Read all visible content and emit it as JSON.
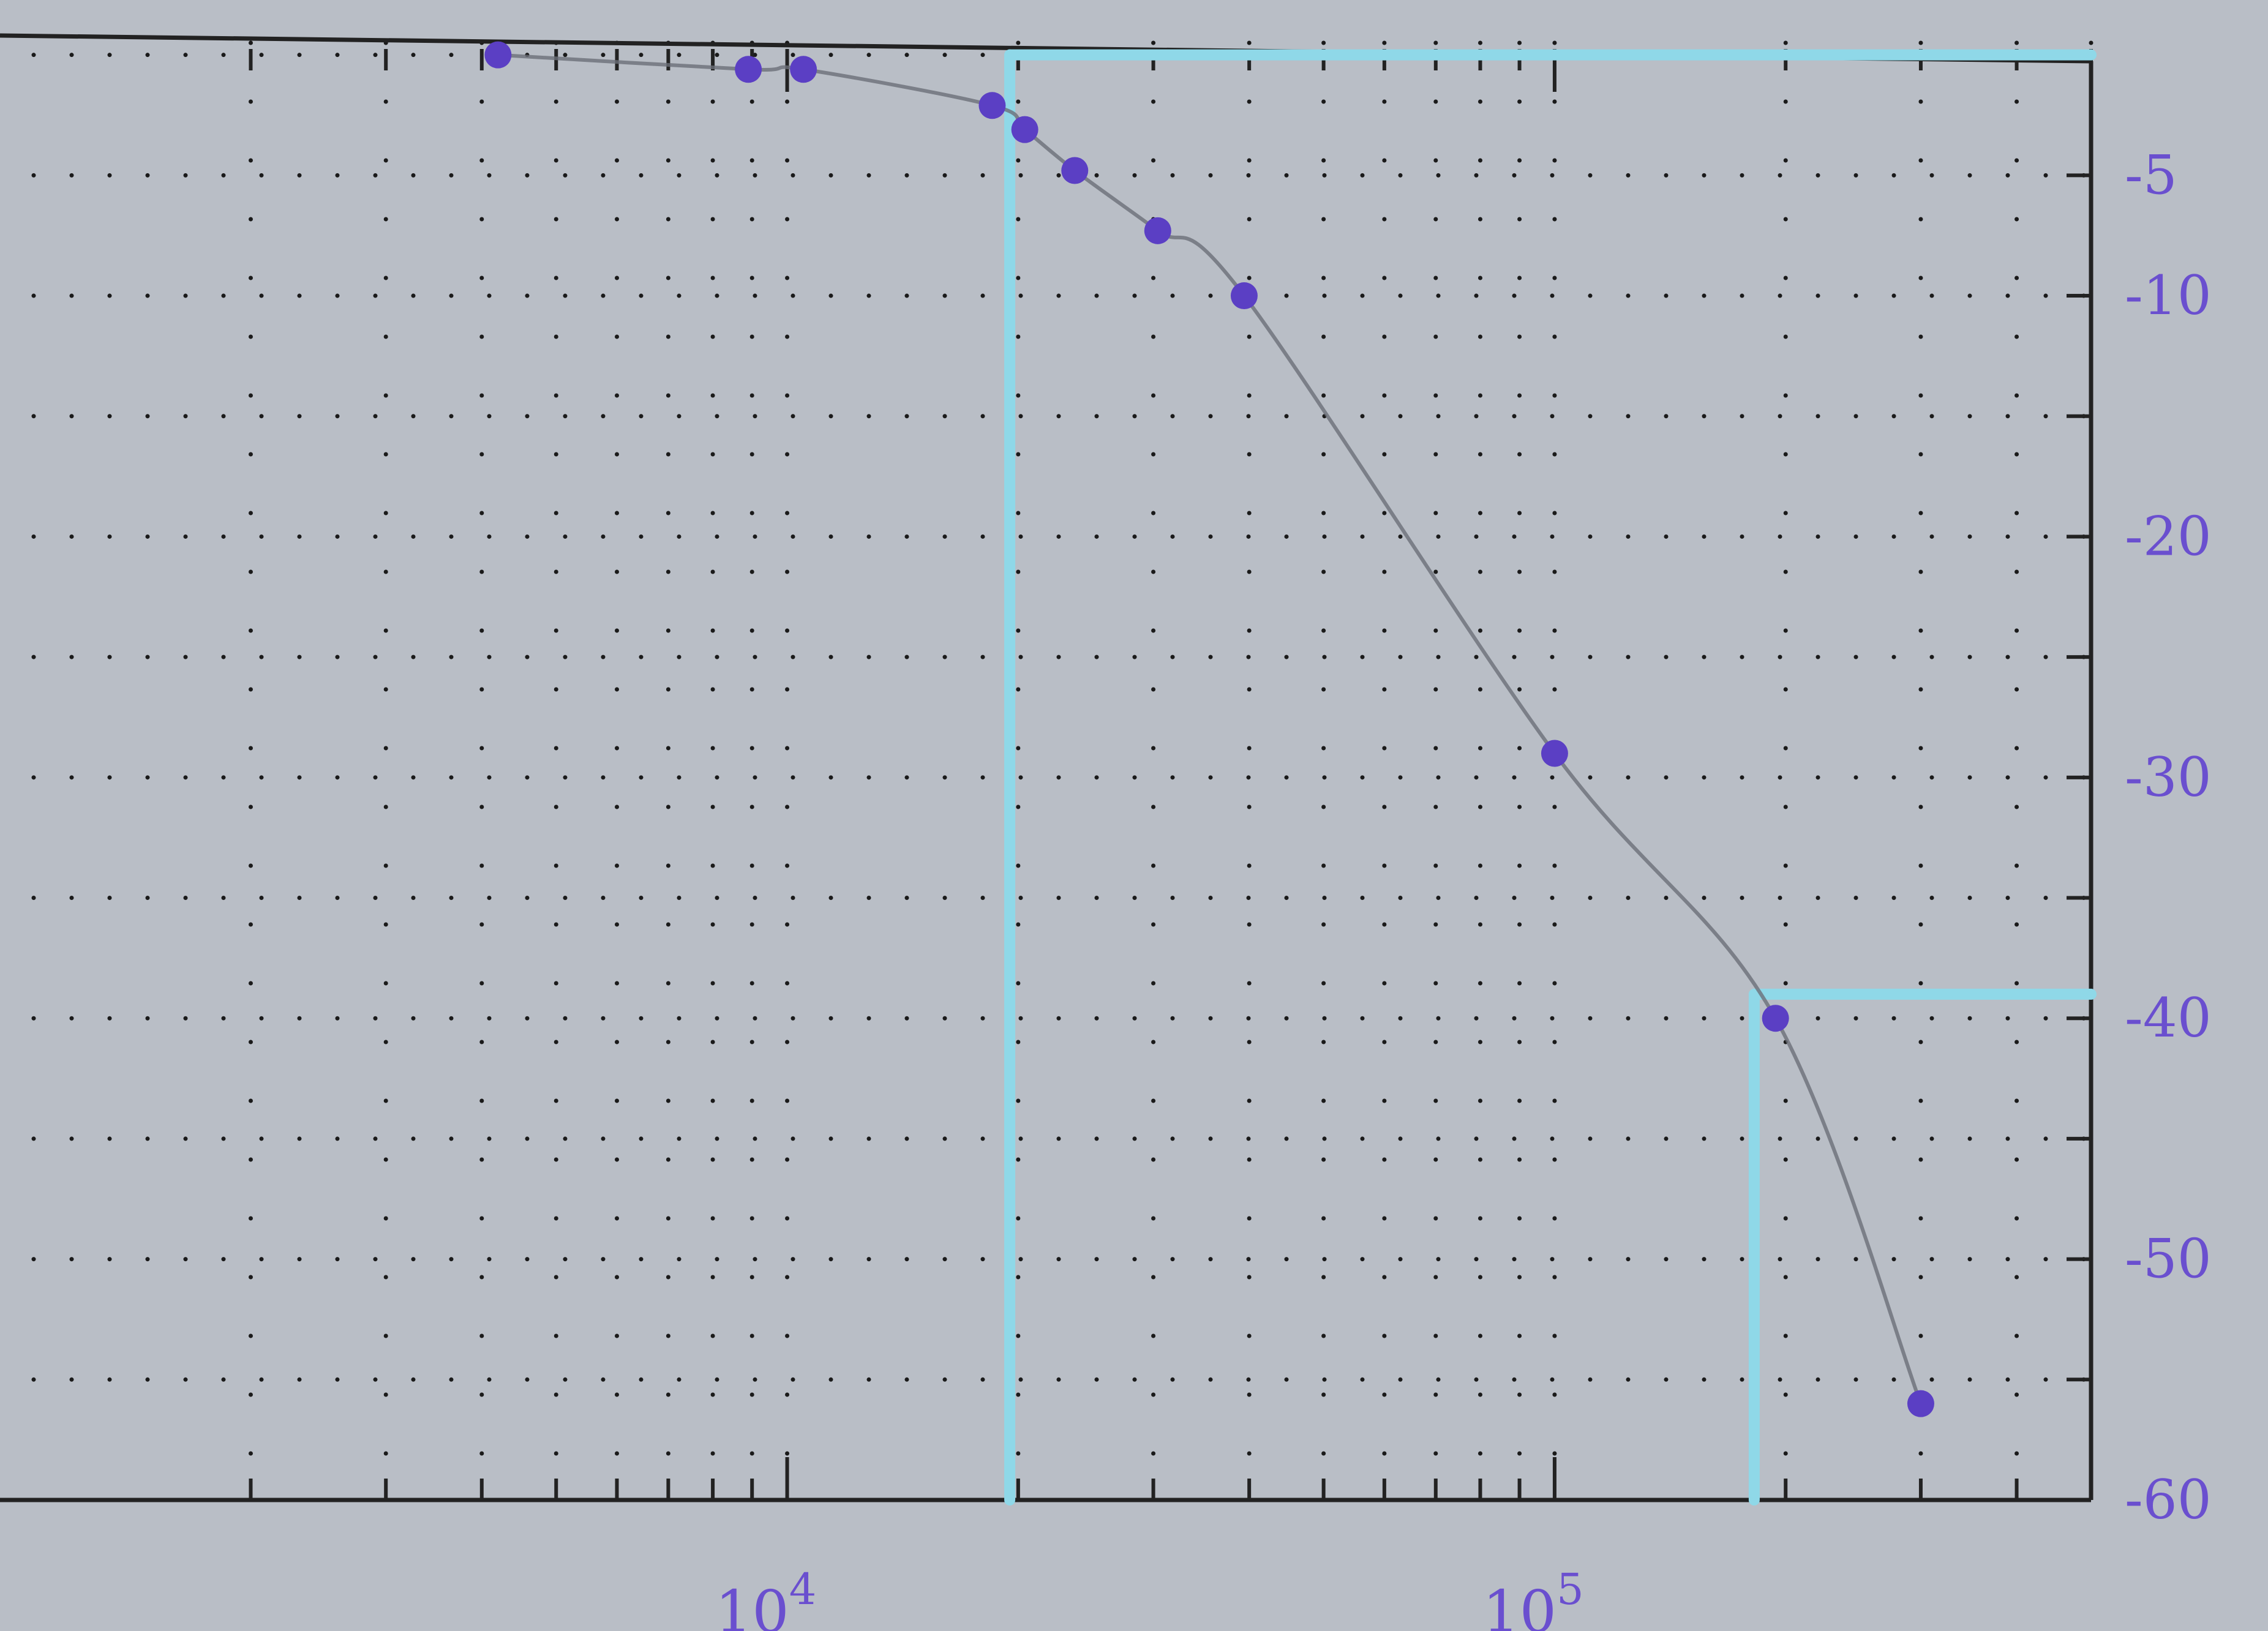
{
  "chart_data": {
    "type": "line",
    "title": "",
    "xlabel": "",
    "ylabel": "",
    "x_scale": "log",
    "xlim": [
      1300,
      500000
    ],
    "ylim": [
      -60,
      0.5
    ],
    "x_ticks": [
      {
        "value": 10000,
        "base": "10",
        "exp": "4"
      },
      {
        "value": 100000,
        "base": "10",
        "exp": "5"
      }
    ],
    "y_ticks": [
      {
        "value": -5,
        "label": "-5"
      },
      {
        "value": -10,
        "label": "-10"
      },
      {
        "value": -20,
        "label": "-20"
      },
      {
        "value": -30,
        "label": "-30"
      },
      {
        "value": -40,
        "label": "-40"
      },
      {
        "value": -50,
        "label": "-50"
      },
      {
        "value": -60,
        "label": "-60"
      }
    ],
    "grid": "dotted",
    "series": [
      {
        "points": [
          {
            "x": 4200,
            "y": 0
          },
          {
            "x": 8900,
            "y": -0.6
          },
          {
            "x": 10500,
            "y": -0.6
          },
          {
            "x": 18500,
            "y": -2.1
          },
          {
            "x": 20400,
            "y": -3.1
          },
          {
            "x": 23700,
            "y": -4.8
          },
          {
            "x": 30400,
            "y": -7.3
          },
          {
            "x": 39400,
            "y": -10.0
          },
          {
            "x": 100000,
            "y": -29.0
          },
          {
            "x": 194000,
            "y": -40.0
          },
          {
            "x": 300000,
            "y": -56.0
          }
        ],
        "color": "#5b3fc4"
      }
    ],
    "reference_lines": [
      {
        "points": [
          [
            19500,
            0
          ],
          [
            19500,
            -60
          ]
        ],
        "color": "#8fd8e8"
      },
      {
        "points": [
          [
            19500,
            0
          ],
          [
            500000,
            0
          ]
        ],
        "color": "#8fd8e8"
      },
      {
        "points": [
          [
            182000,
            -39
          ],
          [
            182000,
            -60
          ]
        ],
        "color": "#8fd8e8"
      },
      {
        "points": [
          [
            182000,
            -39
          ],
          [
            500000,
            -39
          ]
        ],
        "color": "#8fd8e8"
      }
    ],
    "colors": {
      "axis": "#222222",
      "grid": "#1a1a1a",
      "labels": "#6a4fcf",
      "background": "#b9bec6"
    }
  }
}
